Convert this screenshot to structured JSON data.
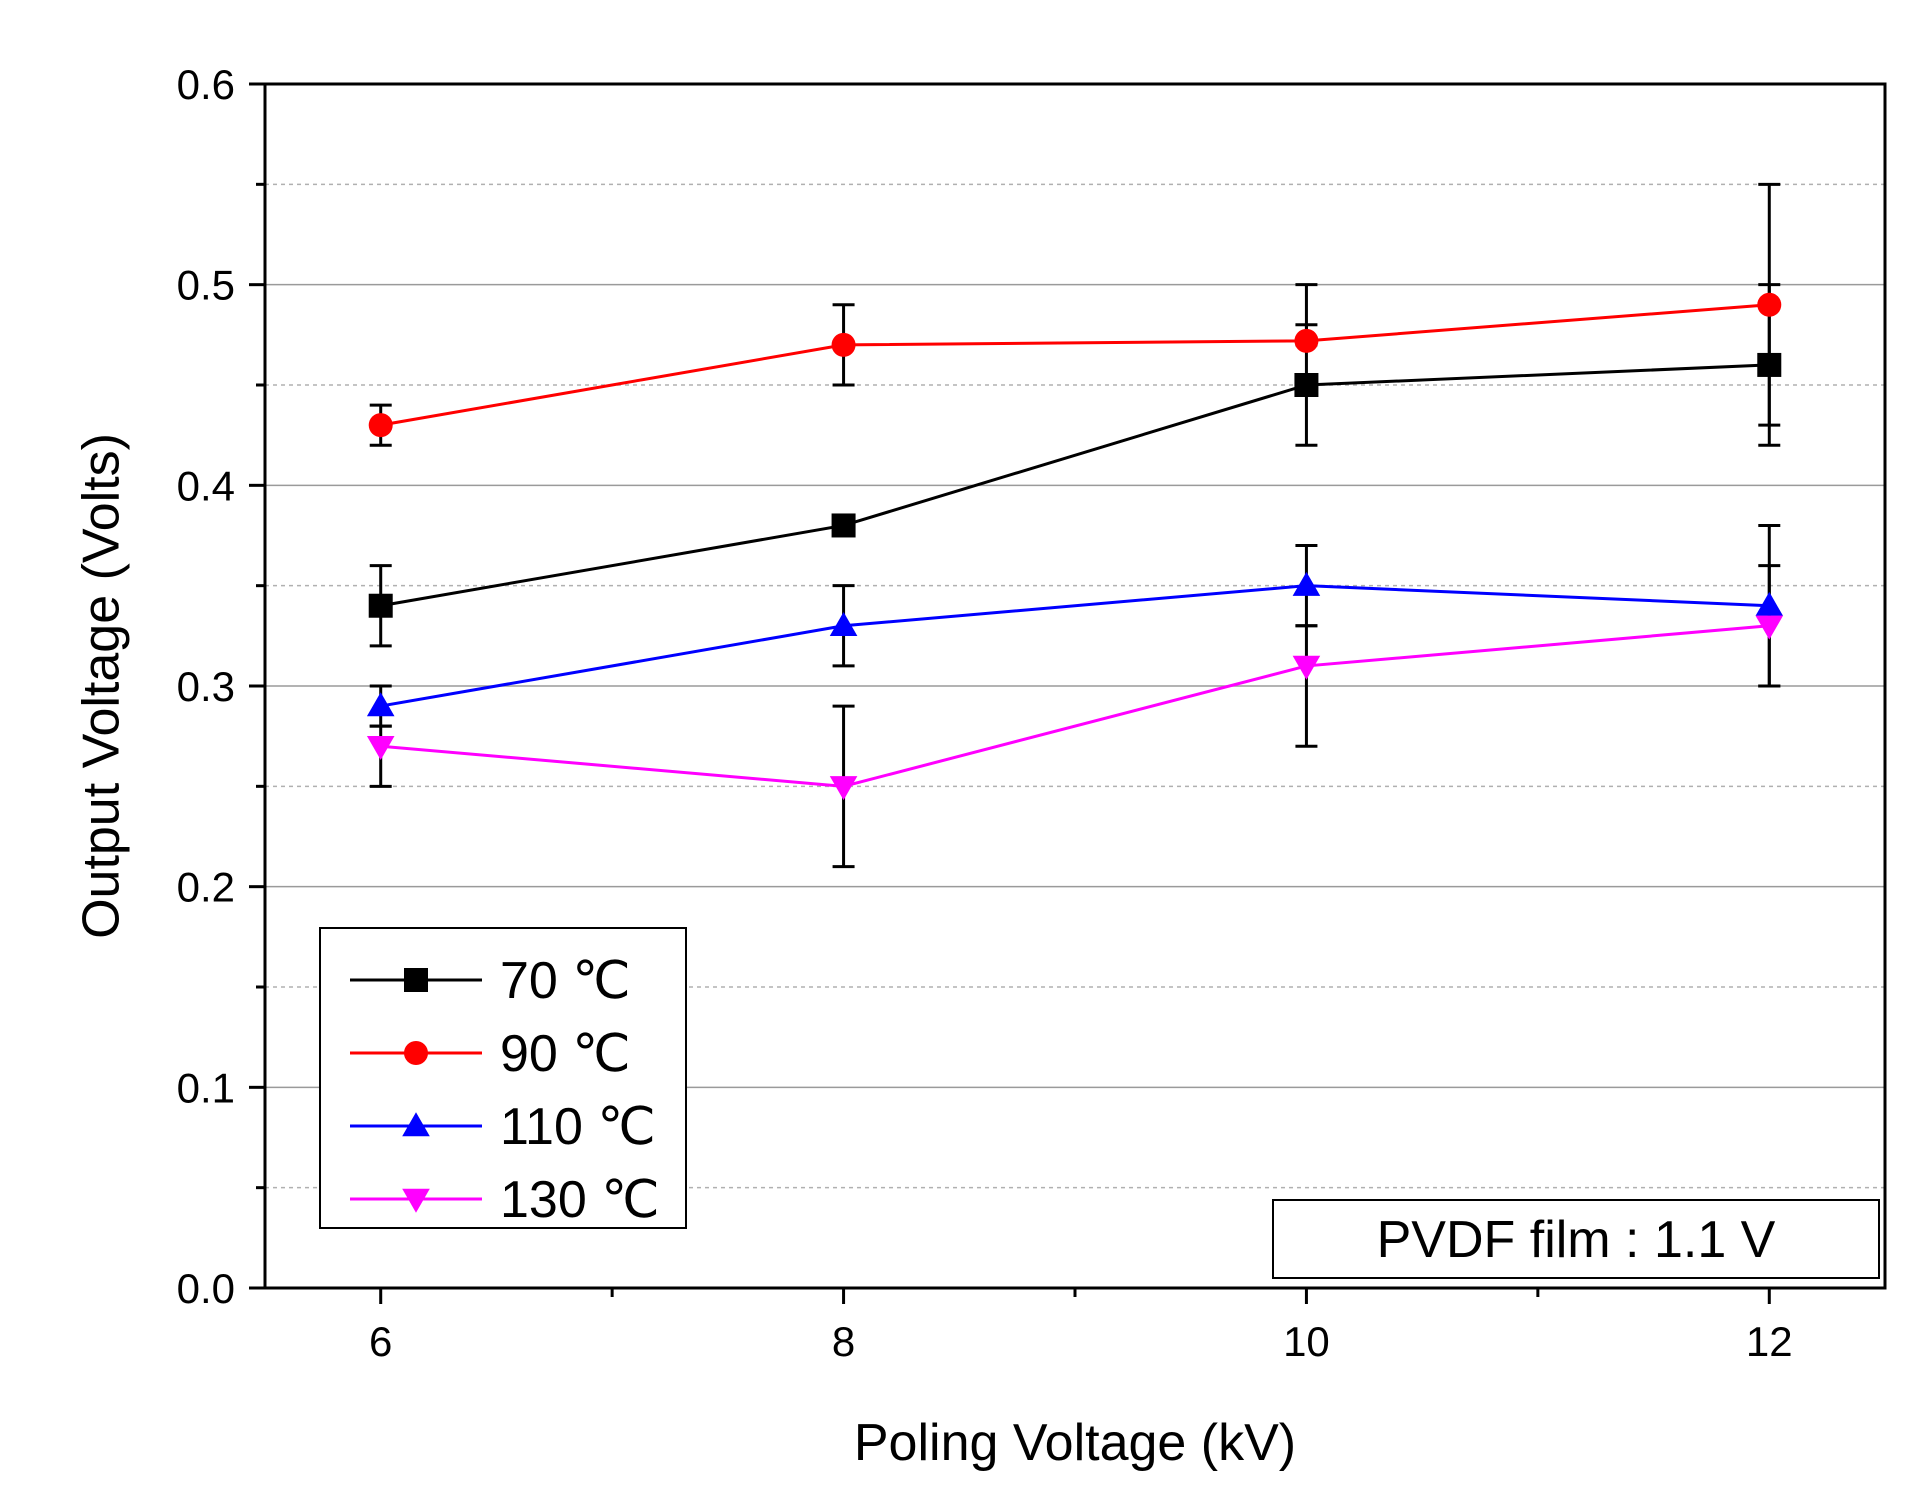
{
  "chart_data": {
    "type": "line",
    "title": "",
    "xlabel": "Poling Voltage (kV)",
    "ylabel": "Output Voltage (Volts)",
    "xlim": [
      5.5,
      12.5
    ],
    "ylim": [
      0.0,
      0.6
    ],
    "x": [
      6,
      8,
      10,
      12
    ],
    "x_ticks": [
      6,
      8,
      10,
      12
    ],
    "x_tick_labels": [
      "6",
      "8",
      "10",
      "12"
    ],
    "y_ticks": [
      0.0,
      0.1,
      0.2,
      0.3,
      0.4,
      0.5,
      0.6
    ],
    "y_tick_labels": [
      "0.0",
      "0.1",
      "0.2",
      "0.3",
      "0.4",
      "0.5",
      "0.6"
    ],
    "grid": true,
    "legend_position": "bottom-left",
    "series": [
      {
        "name": "70 ℃",
        "color": "#000000",
        "marker": "square",
        "values": [
          0.34,
          0.38,
          0.45,
          0.46
        ],
        "err_low": [
          0.32,
          0.38,
          0.42,
          0.42
        ],
        "err_high": [
          0.36,
          0.38,
          0.5,
          0.5
        ]
      },
      {
        "name": "90 ℃",
        "color": "#ff0000",
        "marker": "circle",
        "values": [
          0.43,
          0.47,
          0.472,
          0.49
        ],
        "err_low": [
          0.42,
          0.45,
          0.47,
          0.43
        ],
        "err_high": [
          0.44,
          0.49,
          0.48,
          0.55
        ]
      },
      {
        "name": "110 ℃",
        "color": "#0000ff",
        "marker": "triangle-up",
        "values": [
          0.29,
          0.33,
          0.35,
          0.34
        ],
        "err_low": [
          0.28,
          0.31,
          0.33,
          0.3
        ],
        "err_high": [
          0.3,
          0.35,
          0.37,
          0.38
        ]
      },
      {
        "name": "130 ℃",
        "color": "#ff00ff",
        "marker": "triangle-down",
        "values": [
          0.27,
          0.25,
          0.31,
          0.33
        ],
        "err_low": [
          0.25,
          0.21,
          0.27,
          0.3
        ],
        "err_high": [
          0.28,
          0.29,
          0.33,
          0.36
        ]
      }
    ],
    "annotation": "PVDF film : 1.1 V"
  }
}
